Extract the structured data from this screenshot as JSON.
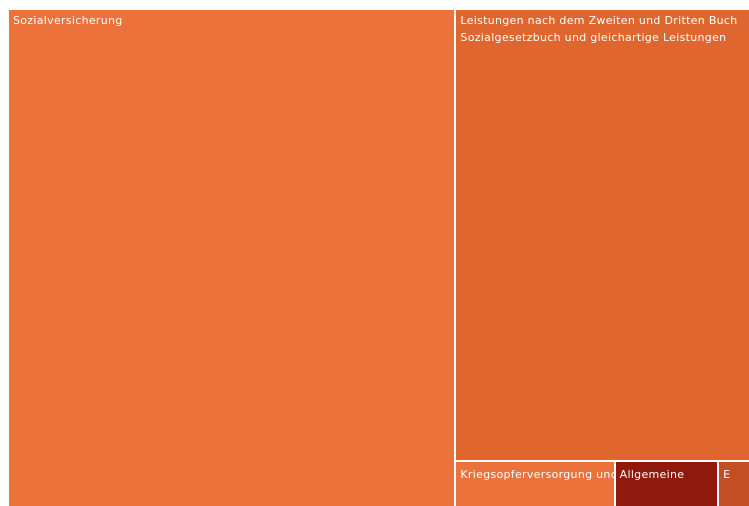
{
  "chart_data": {
    "type": "treemap",
    "title": "",
    "items": [
      {
        "label": "Sozialversicherung",
        "value": 60.3,
        "color": "#EB723A"
      },
      {
        "label": "Leistungen nach dem Zweiten und Dritten Buch Sozialgesetzbuch und gleichartige Leistungen",
        "value": 36.0,
        "color": "#DF662F"
      },
      {
        "label": "Kriegsopferversorgung und",
        "value": 2.0,
        "color": "#EB723A"
      },
      {
        "label": "Allgemeine",
        "value": 1.3,
        "color": "#8F1A0C"
      },
      {
        "label": "E",
        "value": 0.4,
        "color": "#C44E24"
      }
    ]
  }
}
